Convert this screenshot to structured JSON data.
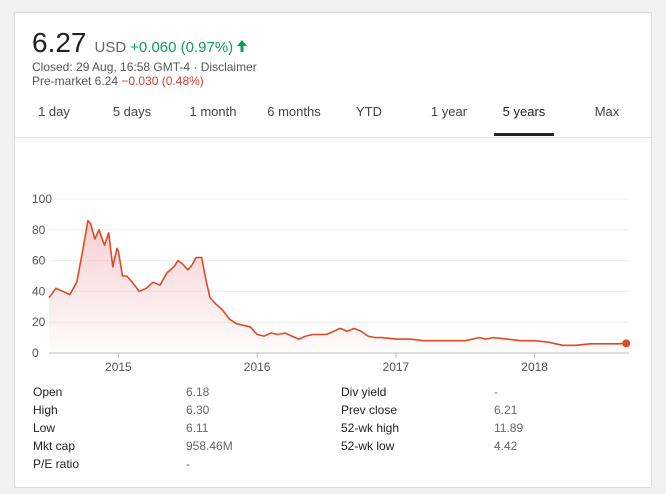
{
  "quote": {
    "price": "6.27",
    "currency": "USD",
    "change": "+0.060 (0.97%)",
    "closed_line": "Closed: 29 Aug, 16:58 GMT-4 · Disclaimer",
    "premarket_label": "Pre-market 6.24",
    "premarket_change": "−0.030 (0.48%)",
    "up_color": "#0f9d58",
    "down_color": "#d23f31"
  },
  "tabs": [
    {
      "label": "1 day"
    },
    {
      "label": "5 days"
    },
    {
      "label": "1 month"
    },
    {
      "label": "6 months"
    },
    {
      "label": "YTD"
    },
    {
      "label": "1 year"
    },
    {
      "label": "5 years",
      "active": true
    },
    {
      "label": "Max"
    }
  ],
  "chart_data": {
    "type": "area",
    "line_color": "#dd4b26",
    "fill_color": "#f4c7cb",
    "ylim": [
      0,
      100
    ],
    "y_ticks": [
      "100",
      "80",
      "60",
      "40",
      "20",
      "0"
    ],
    "x_ticks": [
      "2015",
      "2016",
      "2017",
      "2018"
    ],
    "grid": true,
    "x": [
      2014.5,
      2014.55,
      2014.6,
      2014.65,
      2014.7,
      2014.75,
      2014.78,
      2014.8,
      2014.83,
      2014.86,
      2014.9,
      2014.93,
      2014.96,
      2014.99,
      2015.0,
      2015.03,
      2015.06,
      2015.1,
      2015.15,
      2015.2,
      2015.25,
      2015.3,
      2015.35,
      2015.4,
      2015.43,
      2015.46,
      2015.5,
      2015.53,
      2015.56,
      2015.6,
      2015.63,
      2015.66,
      2015.7,
      2015.75,
      2015.8,
      2015.85,
      2015.9,
      2015.95,
      2016.0,
      2016.05,
      2016.1,
      2016.15,
      2016.2,
      2016.25,
      2016.3,
      2016.35,
      2016.4,
      2016.45,
      2016.5,
      2016.55,
      2016.6,
      2016.65,
      2016.7,
      2016.75,
      2016.8,
      2016.85,
      2016.9,
      2017.0,
      2017.1,
      2017.2,
      2017.3,
      2017.4,
      2017.5,
      2017.6,
      2017.65,
      2017.7,
      2017.8,
      2017.9,
      2018.0,
      2018.1,
      2018.2,
      2018.3,
      2018.4,
      2018.5,
      2018.6,
      2018.66
    ],
    "y": [
      36,
      42,
      40,
      38,
      46,
      70,
      86,
      84,
      74,
      80,
      70,
      78,
      56,
      68,
      66,
      50,
      50,
      46,
      40,
      42,
      46,
      44,
      52,
      56,
      60,
      58,
      54,
      57,
      62,
      62,
      48,
      36,
      32,
      28,
      22,
      19,
      18,
      17,
      12,
      11,
      13,
      12,
      13,
      11,
      9,
      11,
      12,
      12,
      12,
      14,
      16,
      14,
      16,
      14,
      11,
      10,
      10,
      9,
      9,
      8,
      8,
      8,
      8,
      10,
      9,
      10,
      9,
      8,
      8,
      7,
      5,
      5,
      6,
      6,
      6,
      6.27
    ]
  },
  "stats": {
    "left": [
      {
        "label": "Open",
        "value": "6.18"
      },
      {
        "label": "High",
        "value": "6.30"
      },
      {
        "label": "Low",
        "value": "6.11"
      },
      {
        "label": "Mkt cap",
        "value": "958.46M"
      },
      {
        "label": "P/E ratio",
        "value": "-"
      }
    ],
    "right": [
      {
        "label": "Div yield",
        "value": "-"
      },
      {
        "label": "Prev close",
        "value": "6.21"
      },
      {
        "label": "52-wk high",
        "value": "11.89"
      },
      {
        "label": "52-wk low",
        "value": "4.42"
      }
    ]
  }
}
